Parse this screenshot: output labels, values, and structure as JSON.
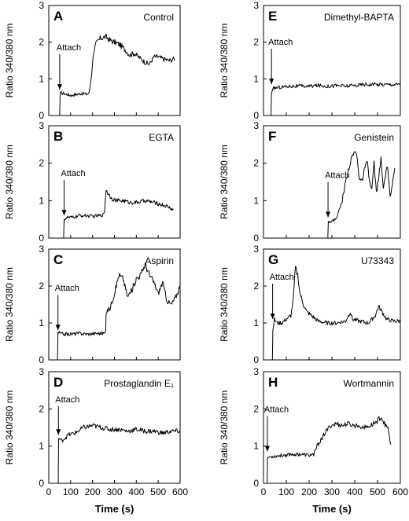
{
  "figure": {
    "xlabel": "Time (s)",
    "ylabel": "Ratio 340/380 nm",
    "annotation": "Attach"
  },
  "chart_data": [
    {
      "type": "line",
      "panel_label": "A",
      "title": "Control",
      "xlim": [
        0,
        600
      ],
      "ylim": [
        0,
        3
      ],
      "xticks": [
        0,
        100,
        200,
        300,
        400,
        500,
        600
      ],
      "yticks": [
        0,
        1,
        2,
        3
      ],
      "attach_time": 50,
      "attach_level": 0.6,
      "points": [
        [
          50,
          0
        ],
        [
          52,
          0.62
        ],
        [
          80,
          0.58
        ],
        [
          100,
          0.55
        ],
        [
          120,
          0.57
        ],
        [
          150,
          0.6
        ],
        [
          175,
          0.58
        ],
        [
          185,
          0.62
        ],
        [
          195,
          1.1
        ],
        [
          205,
          1.75
        ],
        [
          215,
          1.95
        ],
        [
          235,
          2.1
        ],
        [
          260,
          2.15
        ],
        [
          280,
          2.05
        ],
        [
          300,
          2.0
        ],
        [
          320,
          1.95
        ],
        [
          340,
          1.85
        ],
        [
          370,
          1.65
        ],
        [
          390,
          1.7
        ],
        [
          420,
          1.55
        ],
        [
          440,
          1.45
        ],
        [
          460,
          1.4
        ],
        [
          480,
          1.6
        ],
        [
          500,
          1.6
        ],
        [
          520,
          1.55
        ],
        [
          550,
          1.5
        ],
        [
          575,
          1.55
        ]
      ]
    },
    {
      "type": "line",
      "panel_label": "B",
      "title": "EGTA",
      "xlim": [
        0,
        600
      ],
      "ylim": [
        0,
        3
      ],
      "xticks": [
        0,
        100,
        200,
        300,
        400,
        500,
        600
      ],
      "yticks": [
        0,
        1,
        2,
        3
      ],
      "attach_time": 70,
      "attach_level": 0.5,
      "points": [
        [
          68,
          0
        ],
        [
          70,
          0.5
        ],
        [
          85,
          0.55
        ],
        [
          110,
          0.55
        ],
        [
          140,
          0.6
        ],
        [
          170,
          0.6
        ],
        [
          200,
          0.58
        ],
        [
          230,
          0.6
        ],
        [
          250,
          0.62
        ],
        [
          255,
          0.75
        ],
        [
          262,
          1.3
        ],
        [
          270,
          1.2
        ],
        [
          290,
          1.05
        ],
        [
          310,
          1.0
        ],
        [
          340,
          1.0
        ],
        [
          370,
          0.95
        ],
        [
          400,
          0.95
        ],
        [
          440,
          1.0
        ],
        [
          480,
          0.95
        ],
        [
          510,
          0.9
        ],
        [
          540,
          0.85
        ],
        [
          570,
          0.75
        ]
      ]
    },
    {
      "type": "line",
      "panel_label": "C",
      "title": "Aspirin",
      "xlim": [
        0,
        600
      ],
      "ylim": [
        0,
        3
      ],
      "xticks": [
        0,
        100,
        200,
        300,
        400,
        500,
        600
      ],
      "yticks": [
        0,
        1,
        2,
        3
      ],
      "attach_time": 42,
      "attach_level": 0.7,
      "points": [
        [
          40,
          0
        ],
        [
          42,
          0.75
        ],
        [
          60,
          0.7
        ],
        [
          100,
          0.7
        ],
        [
          140,
          0.72
        ],
        [
          180,
          0.7
        ],
        [
          220,
          0.72
        ],
        [
          255,
          0.72
        ],
        [
          260,
          0.75
        ],
        [
          262,
          1.3
        ],
        [
          280,
          1.4
        ],
        [
          300,
          1.8
        ],
        [
          320,
          2.3
        ],
        [
          340,
          2.2
        ],
        [
          360,
          1.7
        ],
        [
          380,
          1.9
        ],
        [
          400,
          2.2
        ],
        [
          420,
          2.3
        ],
        [
          440,
          2.6
        ],
        [
          460,
          2.3
        ],
        [
          480,
          2.1
        ],
        [
          500,
          1.8
        ],
        [
          520,
          2.1
        ],
        [
          540,
          1.6
        ],
        [
          560,
          1.5
        ],
        [
          580,
          1.7
        ],
        [
          600,
          2.0
        ]
      ]
    },
    {
      "type": "line",
      "panel_label": "D",
      "title": "Prostaglandin E₁",
      "xlim": [
        0,
        600
      ],
      "ylim": [
        0,
        3
      ],
      "xticks": [
        0,
        100,
        200,
        300,
        400,
        500,
        600
      ],
      "yticks": [
        0,
        1,
        2,
        3
      ],
      "attach_time": 44,
      "attach_level": 1.2,
      "points": [
        [
          43,
          0
        ],
        [
          45,
          1.2
        ],
        [
          60,
          1.15
        ],
        [
          90,
          1.3
        ],
        [
          120,
          1.35
        ],
        [
          160,
          1.5
        ],
        [
          200,
          1.55
        ],
        [
          240,
          1.5
        ],
        [
          280,
          1.45
        ],
        [
          320,
          1.45
        ],
        [
          360,
          1.4
        ],
        [
          400,
          1.45
        ],
        [
          440,
          1.4
        ],
        [
          480,
          1.4
        ],
        [
          520,
          1.35
        ],
        [
          560,
          1.4
        ],
        [
          600,
          1.4
        ]
      ]
    },
    {
      "type": "line",
      "panel_label": "E",
      "title": "Dimethyl-BAPTA",
      "xlim": [
        0,
        600
      ],
      "ylim": [
        0,
        3
      ],
      "xticks": [
        0,
        100,
        200,
        300,
        400,
        500,
        600
      ],
      "yticks": [
        0,
        1,
        2,
        3
      ],
      "attach_time": 35,
      "attach_level": 0.75,
      "points": [
        [
          33,
          0
        ],
        [
          35,
          0.6
        ],
        [
          45,
          0.75
        ],
        [
          80,
          0.78
        ],
        [
          120,
          0.8
        ],
        [
          160,
          0.8
        ],
        [
          200,
          0.8
        ],
        [
          240,
          0.82
        ],
        [
          280,
          0.8
        ],
        [
          320,
          0.82
        ],
        [
          360,
          0.8
        ],
        [
          400,
          0.82
        ],
        [
          440,
          0.85
        ],
        [
          480,
          0.85
        ],
        [
          520,
          0.85
        ],
        [
          560,
          0.85
        ],
        [
          600,
          0.85
        ]
      ]
    },
    {
      "type": "line",
      "panel_label": "F",
      "title": "Genistein",
      "xlim": [
        0,
        600
      ],
      "ylim": [
        0,
        3
      ],
      "xticks": [
        0,
        100,
        200,
        300,
        400,
        500,
        600
      ],
      "yticks": [
        0,
        1,
        2,
        3
      ],
      "attach_time": 283,
      "attach_level": 0.45,
      "points": [
        [
          282,
          0
        ],
        [
          284,
          0.45
        ],
        [
          300,
          0.45
        ],
        [
          315,
          0.5
        ],
        [
          330,
          0.7
        ],
        [
          345,
          1.0
        ],
        [
          360,
          1.5
        ],
        [
          375,
          1.9
        ],
        [
          390,
          2.2
        ],
        [
          400,
          2.3
        ],
        [
          410,
          2.2
        ],
        [
          420,
          1.6
        ],
        [
          432,
          1.5
        ],
        [
          445,
          1.9
        ],
        [
          455,
          2.0
        ],
        [
          465,
          1.5
        ],
        [
          475,
          1.3
        ],
        [
          485,
          2.0
        ],
        [
          495,
          1.2
        ],
        [
          505,
          1.6
        ],
        [
          515,
          2.1
        ],
        [
          525,
          1.3
        ],
        [
          535,
          1.7
        ],
        [
          545,
          1.9
        ],
        [
          555,
          1.1
        ],
        [
          565,
          1.4
        ],
        [
          575,
          1.8
        ]
      ]
    },
    {
      "type": "line",
      "panel_label": "G",
      "title": "U73343",
      "xlim": [
        0,
        600
      ],
      "ylim": [
        0,
        3
      ],
      "xticks": [
        0,
        100,
        200,
        300,
        400,
        500,
        600
      ],
      "yticks": [
        0,
        1,
        2,
        3
      ],
      "attach_time": 40,
      "attach_level": 1.0,
      "points": [
        [
          39,
          0
        ],
        [
          41,
          0.8
        ],
        [
          48,
          1.1
        ],
        [
          60,
          1.0
        ],
        [
          80,
          1.0
        ],
        [
          100,
          1.1
        ],
        [
          120,
          1.2
        ],
        [
          130,
          1.6
        ],
        [
          140,
          2.5
        ],
        [
          150,
          2.3
        ],
        [
          160,
          1.8
        ],
        [
          175,
          1.5
        ],
        [
          190,
          1.3
        ],
        [
          210,
          1.2
        ],
        [
          240,
          1.05
        ],
        [
          280,
          1.0
        ],
        [
          320,
          1.0
        ],
        [
          360,
          1.05
        ],
        [
          380,
          1.3
        ],
        [
          390,
          1.1
        ],
        [
          420,
          1.05
        ],
        [
          460,
          1.0
        ],
        [
          490,
          1.2
        ],
        [
          505,
          1.45
        ],
        [
          520,
          1.3
        ],
        [
          540,
          1.1
        ],
        [
          570,
          1.05
        ],
        [
          600,
          1.05
        ]
      ]
    },
    {
      "type": "line",
      "panel_label": "H",
      "title": "Wortmannin",
      "xlim": [
        0,
        600
      ],
      "ylim": [
        0,
        3
      ],
      "xticks": [
        0,
        100,
        200,
        300,
        400,
        500,
        600
      ],
      "yticks": [
        0,
        1,
        2,
        3
      ],
      "attach_time": 17,
      "attach_level": 0.75,
      "points": [
        [
          16,
          0
        ],
        [
          18,
          0.7
        ],
        [
          40,
          0.72
        ],
        [
          80,
          0.75
        ],
        [
          120,
          0.78
        ],
        [
          160,
          0.78
        ],
        [
          200,
          0.75
        ],
        [
          220,
          0.78
        ],
        [
          235,
          1.0
        ],
        [
          255,
          1.2
        ],
        [
          275,
          1.4
        ],
        [
          295,
          1.55
        ],
        [
          320,
          1.6
        ],
        [
          345,
          1.55
        ],
        [
          370,
          1.6
        ],
        [
          395,
          1.55
        ],
        [
          420,
          1.55
        ],
        [
          445,
          1.5
        ],
        [
          470,
          1.55
        ],
        [
          495,
          1.65
        ],
        [
          515,
          1.8
        ],
        [
          530,
          1.6
        ],
        [
          545,
          1.5
        ],
        [
          558,
          1.05
        ]
      ]
    }
  ]
}
